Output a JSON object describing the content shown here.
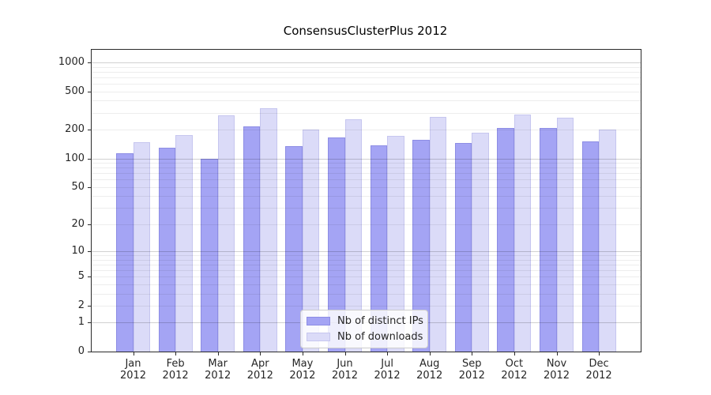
{
  "chart_data": {
    "type": "bar",
    "title": "ConsensusClusterPlus 2012",
    "categories": [
      "Jan 2012",
      "Feb 2012",
      "Mar 2012",
      "Apr 2012",
      "May 2012",
      "Jun 2012",
      "Jul 2012",
      "Aug 2012",
      "Sep 2012",
      "Oct 2012",
      "Nov 2012",
      "Dec 2012"
    ],
    "series": [
      {
        "name": "Nb of distinct IPs",
        "color": "#a4a4f4",
        "border_color": "#8d8de4",
        "values": [
          114,
          129,
          100,
          217,
          134,
          165,
          138,
          156,
          146,
          208,
          207,
          150
        ]
      },
      {
        "name": "Nb of downloads",
        "color": "#dbdbf8",
        "border_color": "#c6c6ef",
        "values": [
          148,
          175,
          280,
          335,
          202,
          256,
          172,
          272,
          184,
          288,
          265,
          200
        ]
      }
    ],
    "xlabel": "",
    "ylabel": "",
    "yscale": "log1p",
    "y_ticks": [
      0,
      1,
      2,
      5,
      10,
      20,
      50,
      100,
      200,
      500,
      1000
    ],
    "ylim": [
      0,
      1353
    ],
    "grid": "horizontal-minor-log",
    "grid_minor_color": "rgba(0,0,0,0.07)",
    "grid_major_color": "rgba(0,0,0,0.18)",
    "legend_position": "inside-bottom-center",
    "frame_color": "#2a2a2a"
  }
}
